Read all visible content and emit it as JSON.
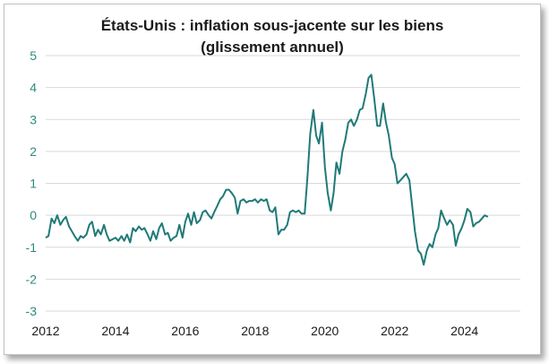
{
  "chart_data": {
    "type": "line",
    "title_line1": "États-Unis : inflation sous-jacente sur les biens",
    "title_line2": "(glissement annuel)",
    "xlabel": "",
    "ylabel": "",
    "ylim": [
      -3,
      5
    ],
    "yticks": [
      "5",
      "4",
      "3",
      "2",
      "1",
      "0",
      "-1",
      "-2",
      "-3"
    ],
    "xlim": [
      2012,
      2025.6
    ],
    "xticks": [
      "2012",
      "2014",
      "2016",
      "2018",
      "2020",
      "2022",
      "2024"
    ],
    "grid": true,
    "line_color": "#1f7a78",
    "ytick_color": "#2d8b7d",
    "xtick_color": "#1a1a1a",
    "series": [
      {
        "points": [
          [
            2012.0,
            -0.7
          ],
          [
            2012.08,
            -0.65
          ],
          [
            2012.17,
            -0.1
          ],
          [
            2012.25,
            -0.25
          ],
          [
            2012.33,
            0.0
          ],
          [
            2012.42,
            -0.3
          ],
          [
            2012.5,
            -0.15
          ],
          [
            2012.58,
            -0.05
          ],
          [
            2012.67,
            -0.35
          ],
          [
            2012.75,
            -0.5
          ],
          [
            2012.83,
            -0.65
          ],
          [
            2012.92,
            -0.8
          ],
          [
            2013.0,
            -0.65
          ],
          [
            2013.08,
            -0.7
          ],
          [
            2013.17,
            -0.6
          ],
          [
            2013.25,
            -0.3
          ],
          [
            2013.33,
            -0.2
          ],
          [
            2013.42,
            -0.65
          ],
          [
            2013.5,
            -0.45
          ],
          [
            2013.58,
            -0.6
          ],
          [
            2013.67,
            -0.3
          ],
          [
            2013.75,
            -0.6
          ],
          [
            2013.83,
            -0.8
          ],
          [
            2013.92,
            -0.75
          ],
          [
            2014.0,
            -0.7
          ],
          [
            2014.08,
            -0.8
          ],
          [
            2014.17,
            -0.65
          ],
          [
            2014.25,
            -0.8
          ],
          [
            2014.33,
            -0.6
          ],
          [
            2014.42,
            -0.85
          ],
          [
            2014.5,
            -0.4
          ],
          [
            2014.58,
            -0.5
          ],
          [
            2014.67,
            -0.35
          ],
          [
            2014.75,
            -0.45
          ],
          [
            2014.83,
            -0.4
          ],
          [
            2014.92,
            -0.6
          ],
          [
            2015.0,
            -0.8
          ],
          [
            2015.08,
            -0.5
          ],
          [
            2015.17,
            -0.75
          ],
          [
            2015.25,
            -0.4
          ],
          [
            2015.33,
            -0.25
          ],
          [
            2015.42,
            -0.6
          ],
          [
            2015.5,
            -0.55
          ],
          [
            2015.58,
            -0.8
          ],
          [
            2015.67,
            -0.7
          ],
          [
            2015.75,
            -0.65
          ],
          [
            2015.83,
            -0.3
          ],
          [
            2015.92,
            -0.7
          ],
          [
            2016.0,
            -0.2
          ],
          [
            2016.08,
            0.05
          ],
          [
            2016.17,
            -0.3
          ],
          [
            2016.25,
            0.1
          ],
          [
            2016.33,
            -0.25
          ],
          [
            2016.42,
            -0.15
          ],
          [
            2016.5,
            0.1
          ],
          [
            2016.58,
            0.15
          ],
          [
            2016.67,
            0.0
          ],
          [
            2016.75,
            -0.1
          ],
          [
            2016.83,
            0.1
          ],
          [
            2016.92,
            0.3
          ],
          [
            2017.0,
            0.5
          ],
          [
            2017.08,
            0.6
          ],
          [
            2017.17,
            0.8
          ],
          [
            2017.25,
            0.8
          ],
          [
            2017.33,
            0.7
          ],
          [
            2017.42,
            0.55
          ],
          [
            2017.5,
            0.05
          ],
          [
            2017.58,
            0.45
          ],
          [
            2017.67,
            0.5
          ],
          [
            2017.75,
            0.4
          ],
          [
            2017.83,
            0.45
          ],
          [
            2017.92,
            0.45
          ],
          [
            2018.0,
            0.5
          ],
          [
            2018.08,
            0.4
          ],
          [
            2018.17,
            0.5
          ],
          [
            2018.25,
            0.45
          ],
          [
            2018.33,
            0.5
          ],
          [
            2018.42,
            0.15
          ],
          [
            2018.5,
            0.1
          ],
          [
            2018.58,
            0.25
          ],
          [
            2018.67,
            -0.6
          ],
          [
            2018.75,
            -0.45
          ],
          [
            2018.83,
            -0.45
          ],
          [
            2018.92,
            -0.3
          ],
          [
            2019.0,
            0.1
          ],
          [
            2019.08,
            0.15
          ],
          [
            2019.17,
            0.1
          ],
          [
            2019.25,
            0.15
          ],
          [
            2019.33,
            0.05
          ],
          [
            2019.42,
            0.05
          ],
          [
            2019.5,
            1.2
          ],
          [
            2019.58,
            2.55
          ],
          [
            2019.67,
            3.3
          ],
          [
            2019.75,
            2.5
          ],
          [
            2019.83,
            2.25
          ],
          [
            2019.92,
            2.9
          ],
          [
            2020.0,
            1.5
          ],
          [
            2020.08,
            0.7
          ],
          [
            2020.17,
            0.15
          ],
          [
            2020.25,
            0.7
          ],
          [
            2020.33,
            1.65
          ],
          [
            2020.42,
            1.3
          ],
          [
            2020.5,
            2.0
          ],
          [
            2020.58,
            2.35
          ],
          [
            2020.67,
            2.9
          ],
          [
            2020.75,
            3.0
          ],
          [
            2020.83,
            2.8
          ],
          [
            2020.92,
            3.0
          ],
          [
            2021.0,
            3.3
          ],
          [
            2021.08,
            3.35
          ],
          [
            2021.17,
            3.8
          ],
          [
            2021.25,
            4.3
          ],
          [
            2021.33,
            4.4
          ],
          [
            2021.42,
            3.6
          ],
          [
            2021.5,
            2.8
          ],
          [
            2021.58,
            2.8
          ],
          [
            2021.67,
            3.5
          ],
          [
            2021.75,
            2.9
          ],
          [
            2021.83,
            2.5
          ],
          [
            2021.92,
            1.8
          ],
          [
            2022.0,
            1.6
          ],
          [
            2022.08,
            1.0
          ],
          [
            2022.17,
            1.1
          ],
          [
            2022.25,
            1.2
          ],
          [
            2022.33,
            1.3
          ],
          [
            2022.42,
            1.1
          ],
          [
            2022.5,
            0.3
          ],
          [
            2022.58,
            -0.5
          ],
          [
            2022.67,
            -1.1
          ],
          [
            2022.75,
            -1.2
          ],
          [
            2022.83,
            -1.55
          ],
          [
            2022.92,
            -1.1
          ],
          [
            2023.0,
            -0.9
          ],
          [
            2023.08,
            -1.0
          ],
          [
            2023.17,
            -0.6
          ],
          [
            2023.25,
            -0.4
          ],
          [
            2023.33,
            0.15
          ],
          [
            2023.42,
            -0.1
          ],
          [
            2023.5,
            -0.3
          ],
          [
            2023.58,
            -0.15
          ],
          [
            2023.67,
            -0.3
          ],
          [
            2023.75,
            -0.95
          ],
          [
            2023.83,
            -0.6
          ],
          [
            2023.92,
            -0.4
          ],
          [
            2024.0,
            -0.15
          ],
          [
            2024.08,
            0.2
          ],
          [
            2024.17,
            0.1
          ],
          [
            2024.25,
            -0.35
          ],
          [
            2024.33,
            -0.25
          ],
          [
            2024.42,
            -0.2
          ],
          [
            2024.5,
            -0.1
          ],
          [
            2024.58,
            0.0
          ],
          [
            2024.67,
            -0.05
          ]
        ]
      }
    ]
  }
}
